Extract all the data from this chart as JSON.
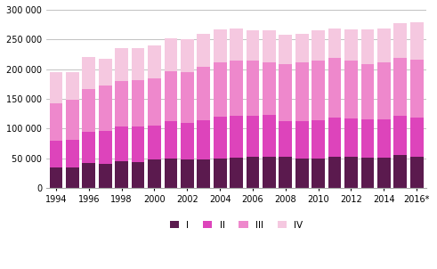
{
  "years": [
    1994,
    1995,
    1996,
    1997,
    1998,
    1999,
    2000,
    2001,
    2002,
    2003,
    2004,
    2005,
    2006,
    2007,
    2008,
    2009,
    2010,
    2011,
    2012,
    2013,
    2014,
    2015,
    "2016*"
  ],
  "Q1": [
    34000,
    35000,
    42000,
    41000,
    45000,
    44000,
    48000,
    50000,
    48000,
    48000,
    50000,
    51000,
    52000,
    53000,
    52000,
    49000,
    49000,
    52000,
    52000,
    51000,
    51000,
    55000,
    52000
  ],
  "Q2": [
    46000,
    46000,
    52000,
    55000,
    58000,
    60000,
    57000,
    62000,
    62000,
    66000,
    70000,
    70000,
    70000,
    70000,
    60000,
    63000,
    65000,
    67000,
    65000,
    65000,
    65000,
    67000,
    67000
  ],
  "Q3": [
    63000,
    67000,
    72000,
    77000,
    77000,
    77000,
    80000,
    85000,
    85000,
    90000,
    92000,
    93000,
    92000,
    88000,
    96000,
    100000,
    100000,
    100000,
    98000,
    93000,
    95000,
    97000,
    97000
  ],
  "Q4": [
    52000,
    47000,
    55000,
    44000,
    55000,
    55000,
    55000,
    55000,
    55000,
    56000,
    55000,
    54000,
    52000,
    54000,
    50000,
    48000,
    52000,
    50000,
    52000,
    58000,
    57000,
    58000,
    63000
  ],
  "colors": [
    "#5b1a4e",
    "#dd44bb",
    "#ee88cc",
    "#f5c8e0"
  ],
  "ylim": [
    0,
    300000
  ],
  "yticks": [
    0,
    50000,
    100000,
    150000,
    200000,
    250000,
    300000
  ],
  "bar_width": 0.8,
  "legend_labels": [
    "I",
    "II",
    "III",
    "IV"
  ],
  "labeled_years": [
    1994,
    1996,
    1998,
    2000,
    2002,
    2004,
    2006,
    2008,
    2010,
    2012,
    2014,
    "2016*"
  ]
}
